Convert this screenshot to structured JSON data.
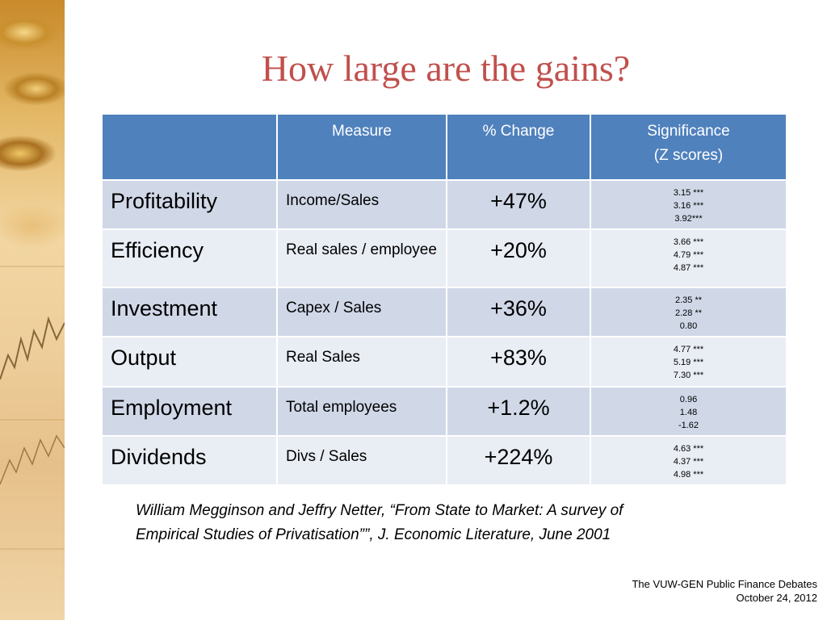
{
  "slide": {
    "title": "How large are the gains?",
    "table": {
      "headers": [
        "",
        "Measure",
        "% Change",
        "Significance",
        "(Z scores)"
      ],
      "rows": [
        {
          "category": "Profitability",
          "measure": "Income/Sales",
          "change": "+47%",
          "z": [
            "3.15 ***",
            "3.16 ***",
            "3.92***"
          ]
        },
        {
          "category": "Efficiency",
          "measure": "Real sales / employee",
          "change": "+20%",
          "z": [
            "3.66 ***",
            "4.79 ***",
            "4.87 ***"
          ]
        },
        {
          "category": "Investment",
          "measure": "Capex / Sales",
          "change": "+36%",
          "z": [
            "2.35 **",
            "2.28 **",
            "0.80"
          ]
        },
        {
          "category": "Output",
          "measure": "Real Sales",
          "change": "+83%",
          "z": [
            "4.77 ***",
            "5.19 ***",
            "7.30 ***"
          ]
        },
        {
          "category": "Employment",
          "measure": "Total employees",
          "change": "+1.2%",
          "z": [
            "0.96",
            "1.48",
            "-1.62"
          ]
        },
        {
          "category": "Dividends",
          "measure": "Divs / Sales",
          "change": "+224%",
          "z": [
            "4.63 ***",
            "4.37 ***",
            "4.98 ***"
          ]
        }
      ]
    },
    "citation": "William Megginson and Jeffry Netter, “From State to Market: A survey of Empirical Studies of Privatisation””, J. Economic Literature,  June 2001",
    "footer": {
      "line1": "The VUW-GEN Public Finance Debates",
      "line2": "October 24, 2012"
    },
    "colors": {
      "title": "#c0504d",
      "header_bg": "#4f81bd",
      "row_odd": "#d0d8e8",
      "row_even": "#e9edf4"
    }
  }
}
